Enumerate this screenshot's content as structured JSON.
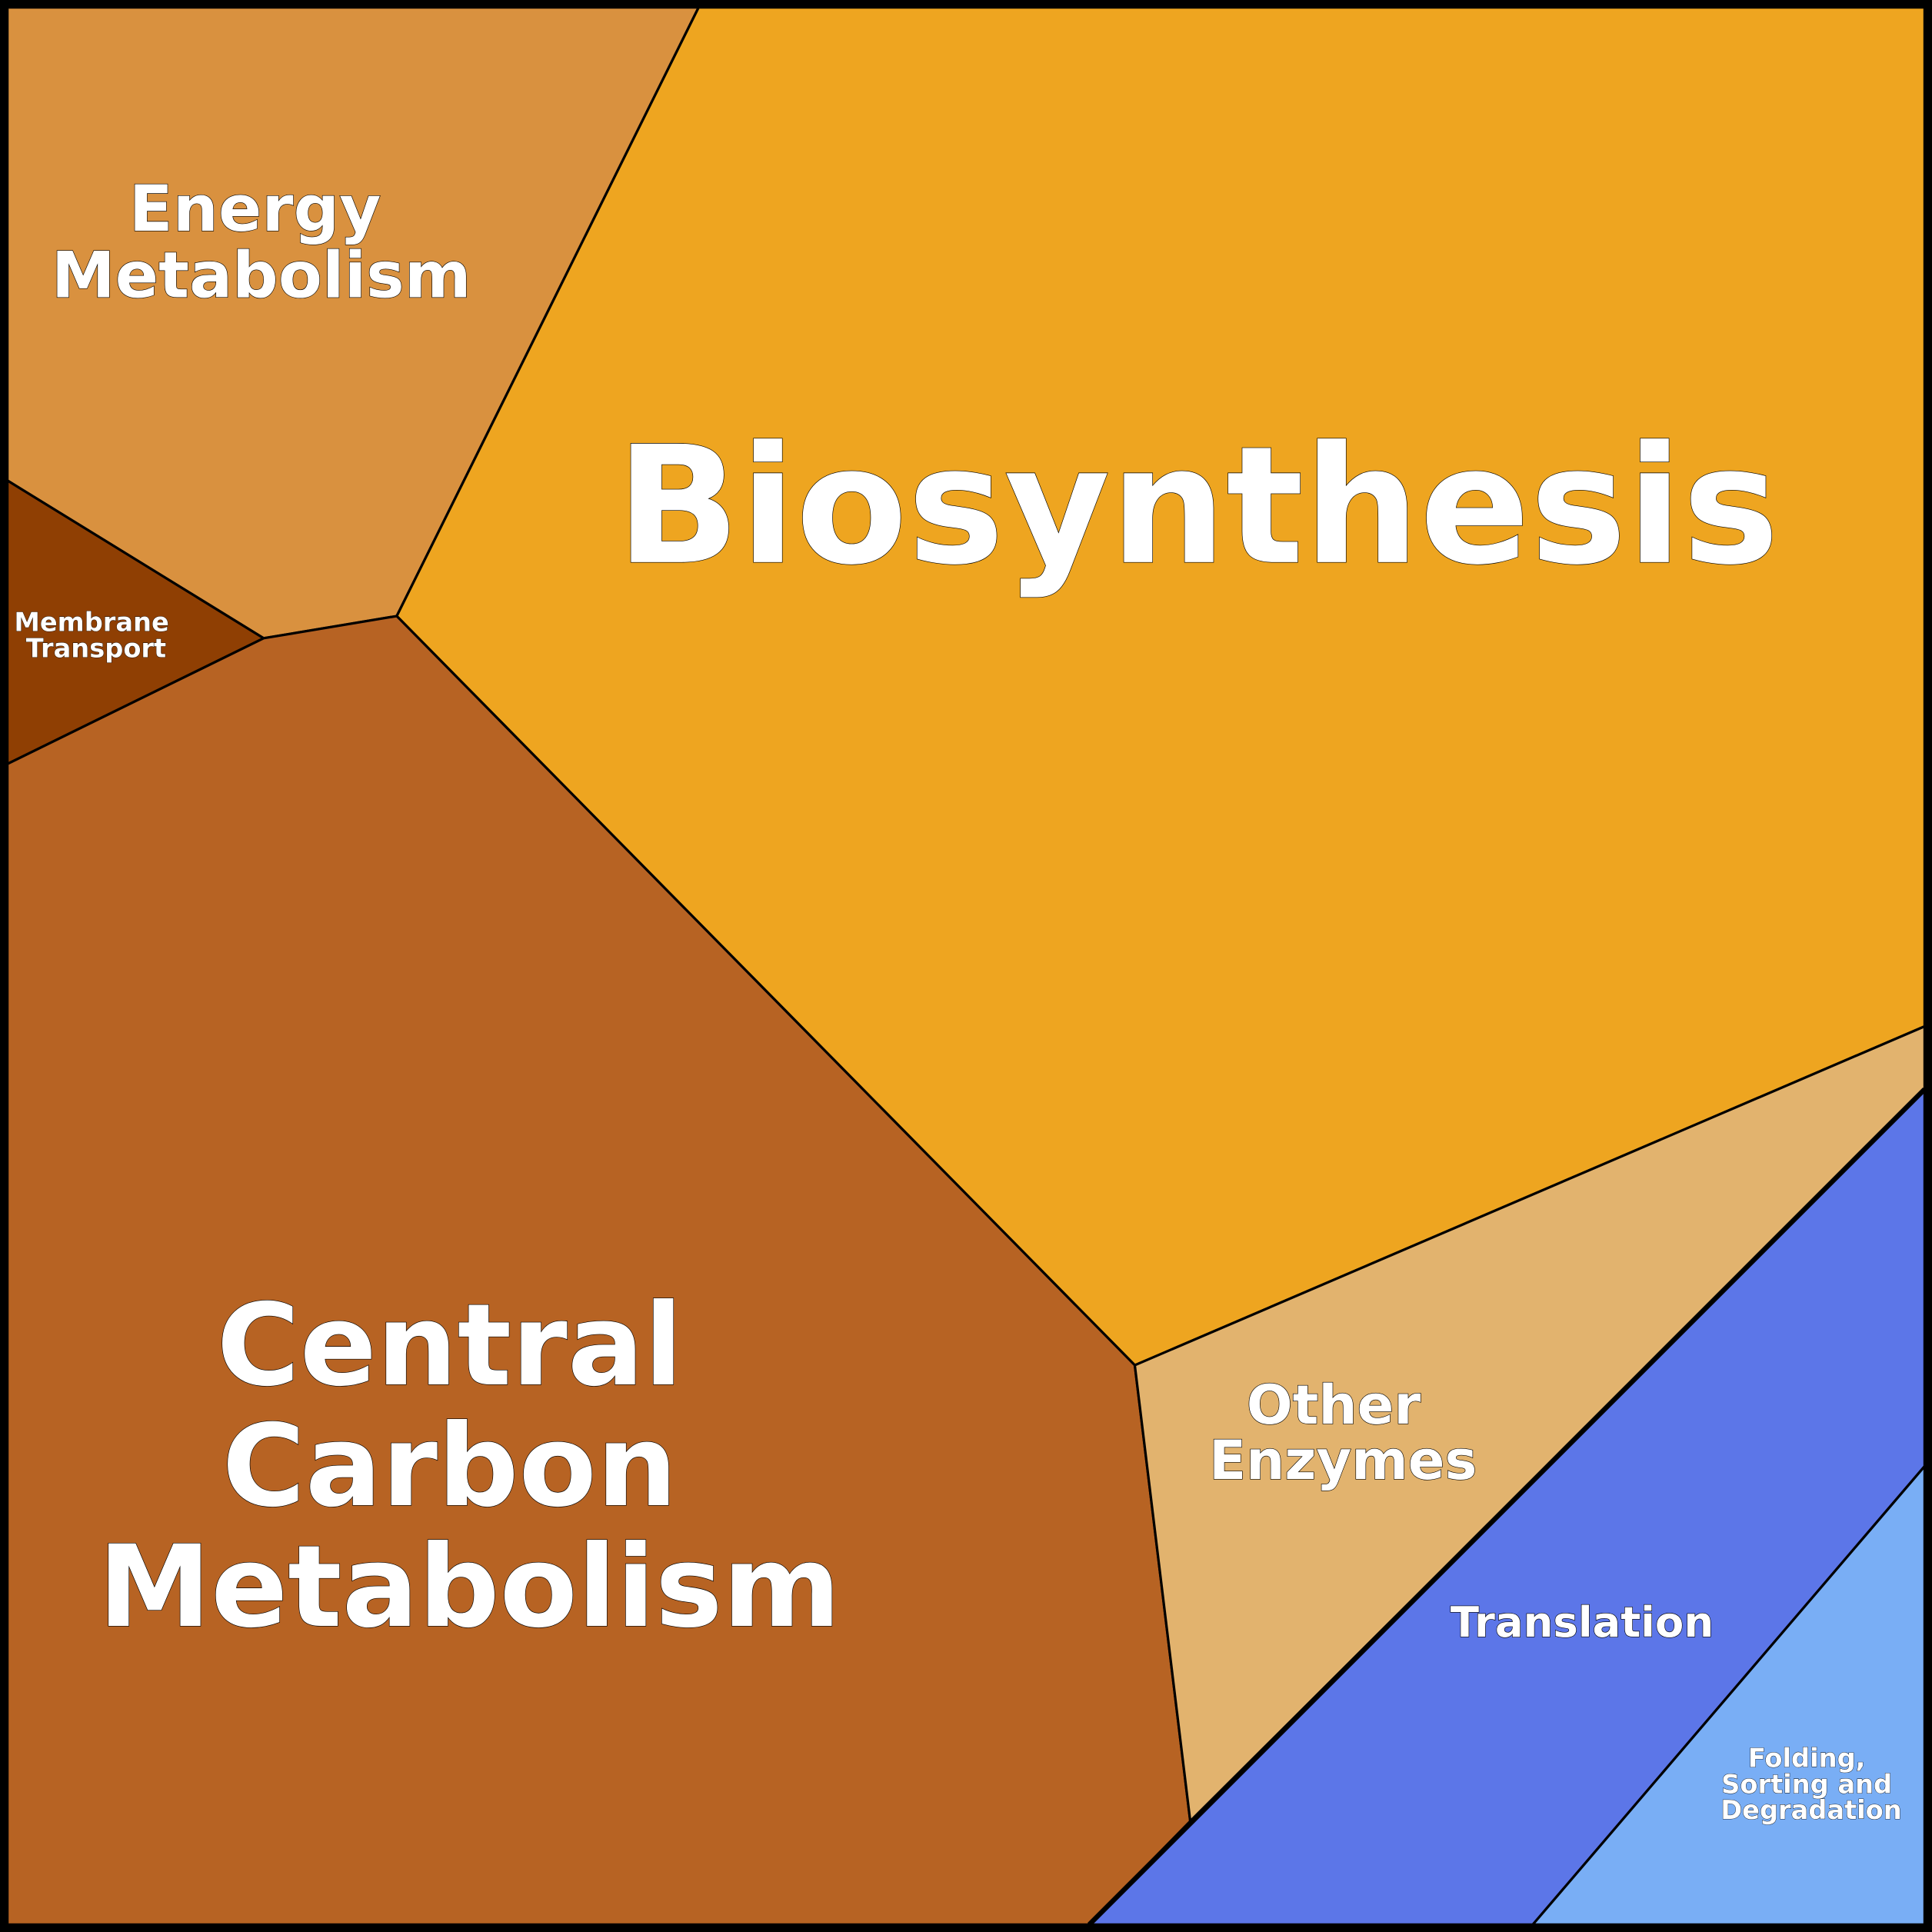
{
  "regions": [
    {
      "label_lines": [
        "Energy",
        "Metabolism"
      ]
    },
    {
      "label_lines": [
        "Biosynthesis"
      ]
    },
    {
      "label_lines": [
        "Membrane",
        "Transport"
      ]
    },
    {
      "label_lines": [
        "Central",
        "Carbon",
        "Metabolism"
      ]
    },
    {
      "label_lines": [
        "Other",
        "Enzymes"
      ]
    },
    {
      "label_lines": [
        "Translation"
      ]
    },
    {
      "label_lines": [
        "Folding,",
        "Sorting and",
        "Degradation"
      ]
    }
  ]
}
